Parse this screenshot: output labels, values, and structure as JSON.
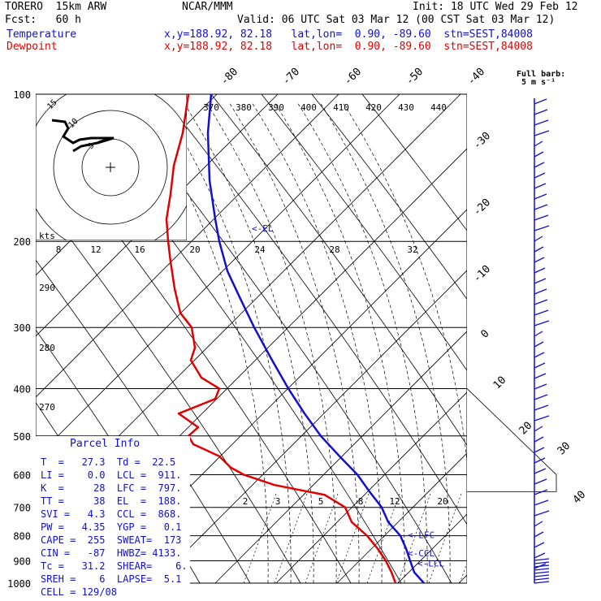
{
  "header": {
    "line1_left": "TORERO  15km ARW",
    "line1_mid": "NCAR/MMM",
    "line1_right": "Init: 18 UTC Wed 29 Feb 12",
    "line2_left": "Fcst:   60 h",
    "line2_right": "Valid: 06 UTC Sat 03 Mar 12 (00 CST Sat 03 Mar 12)",
    "temp_label": "Temperature",
    "temp_info": "x,y=188.92, 82.18   lat,lon=  0.90, -89.60  stn=SEST,84008",
    "dew_label": "Dewpoint",
    "dew_info": "x,y=188.92, 82.18   lat,lon=  0.90, -89.60  stn=SEST,84008"
  },
  "barb_legend": {
    "line1": "Full barb:",
    "line2": "5 m s⁻¹"
  },
  "colors": {
    "temperature": "#1010d0",
    "dewpoint": "#e00000",
    "text": "#000000"
  },
  "chart_data": {
    "type": "line",
    "pressure_levels": [
      100,
      200,
      300,
      400,
      500,
      600,
      700,
      800,
      900,
      1000
    ],
    "isotherm_top_labels": [
      "-80",
      "-70",
      "-60",
      "-50",
      "-40"
    ],
    "isotherm_right_labels": [
      "-30",
      "-20",
      "-10",
      "0",
      "10",
      "20",
      "30",
      "40"
    ],
    "theta_e_labels": [
      "370",
      "380",
      "390",
      "400",
      "410",
      "420",
      "430",
      "440"
    ],
    "mixing_upper_labels": [
      "8",
      "12",
      "16",
      "20",
      "24",
      "28",
      "32"
    ],
    "mixing_lower_labels": [
      "2",
      "3",
      "5",
      "8",
      "12",
      "20"
    ],
    "theta_left_labels": [
      "290",
      "280",
      "270"
    ],
    "hodograph": {
      "speed_unit": "kts",
      "ring_labels": [
        "5",
        "10",
        "15"
      ]
    },
    "annotations": [
      "<-EL",
      "<-LFC",
      "<-CCL",
      "<-LCL"
    ],
    "series": [
      {
        "name": "Temperature",
        "color": "#1010d0",
        "points": [
          [
            100,
            260
          ],
          [
            120,
            256
          ],
          [
            150,
            258
          ],
          [
            180,
            265
          ],
          [
            200,
            270
          ],
          [
            230,
            280
          ],
          [
            260,
            295
          ],
          [
            300,
            313
          ],
          [
            350,
            335
          ],
          [
            400,
            355
          ],
          [
            450,
            375
          ],
          [
            500,
            395
          ],
          [
            550,
            418
          ],
          [
            600,
            440
          ],
          [
            650,
            455
          ],
          [
            700,
            470
          ],
          [
            750,
            478
          ],
          [
            800,
            493
          ],
          [
            850,
            500
          ],
          [
            900,
            505
          ],
          [
            950,
            510
          ],
          [
            1000,
            522
          ]
        ]
      },
      {
        "name": "Dewpoint",
        "color": "#e00000",
        "points": [
          [
            100,
            232
          ],
          [
            120,
            225
          ],
          [
            140,
            214
          ],
          [
            160,
            210
          ],
          [
            180,
            205
          ],
          [
            200,
            207
          ],
          [
            220,
            210
          ],
          [
            250,
            215
          ],
          [
            280,
            222
          ],
          [
            300,
            236
          ],
          [
            330,
            240
          ],
          [
            350,
            235
          ],
          [
            380,
            248
          ],
          [
            400,
            270
          ],
          [
            420,
            265
          ],
          [
            450,
            220
          ],
          [
            480,
            244
          ],
          [
            500,
            232
          ],
          [
            520,
            238
          ],
          [
            550,
            270
          ],
          [
            580,
            284
          ],
          [
            600,
            300
          ],
          [
            630,
            338
          ],
          [
            660,
            400
          ],
          [
            700,
            425
          ],
          [
            750,
            433
          ],
          [
            800,
            452
          ],
          [
            850,
            465
          ],
          [
            900,
            475
          ],
          [
            950,
            482
          ],
          [
            1000,
            487
          ]
        ]
      }
    ]
  },
  "parcel": {
    "title": "Parcel Info",
    "rows": [
      "T  =   27.3  Td =  22.5",
      "LI =    0.0  LCL =  911.",
      "K  =     28  LFC =  797.",
      "TT =     38  EL  =  188.",
      "SVI =   4.3  CCL =  868.",
      "PW =   4.35  YGP =   0.1",
      "CAPE =  255  SWEAT=  173",
      "CIN =   -87  HWBZ= 4133.",
      "Tc =   31.2  SHEAR=    6.",
      "SREH =    6  LAPSE=  5.1",
      "CELL = 129/08"
    ]
  }
}
